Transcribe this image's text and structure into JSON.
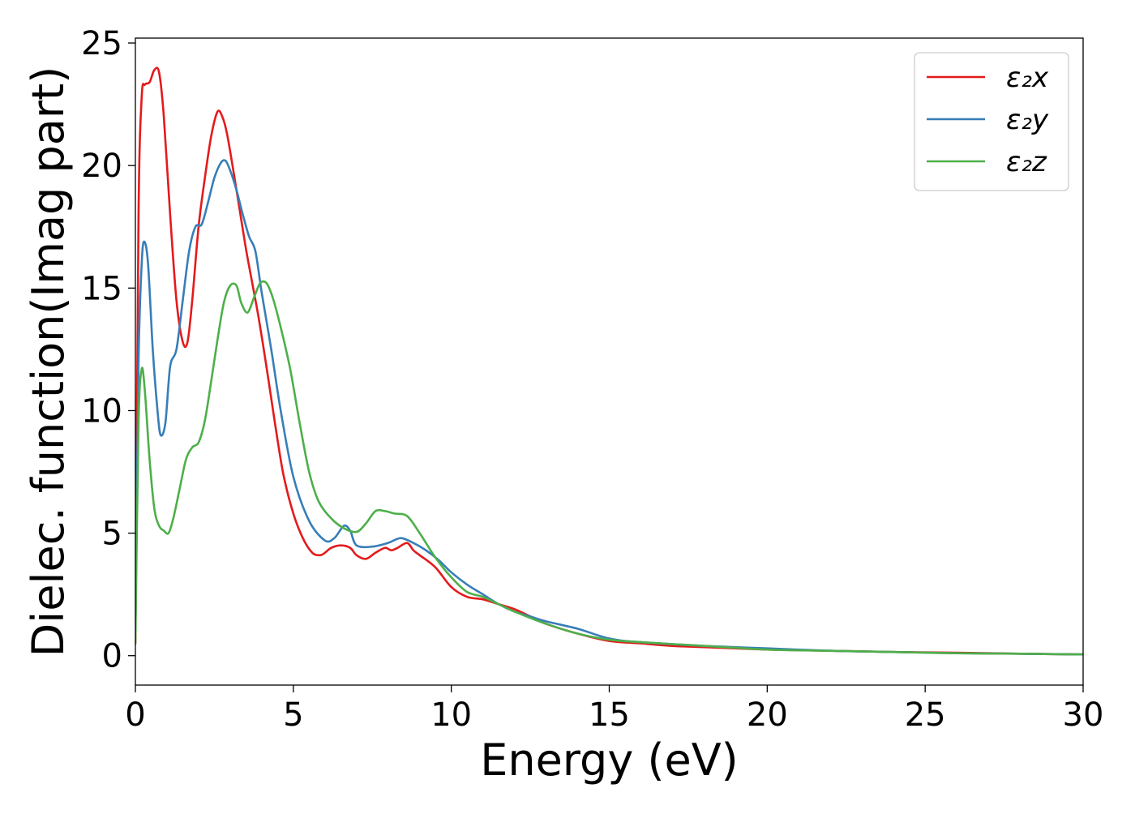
{
  "chart_data": {
    "type": "line",
    "xlabel": "Energy (eV)",
    "ylabel": "Dielec. function(Imag part)",
    "xlim": [
      0,
      30
    ],
    "ylim": [
      -1.2,
      25.2
    ],
    "xticks": [
      0,
      5,
      10,
      15,
      20,
      25,
      30
    ],
    "yticks": [
      0,
      5,
      10,
      15,
      20,
      25
    ],
    "grid": false,
    "legend_position": "top-right",
    "series": [
      {
        "name": "ε₂x",
        "color": "#e41a1c",
        "x": [
          0,
          0.1,
          0.2,
          0.3,
          0.45,
          0.6,
          0.75,
          0.9,
          1.1,
          1.3,
          1.5,
          1.65,
          1.8,
          2.0,
          2.2,
          2.4,
          2.6,
          2.75,
          2.9,
          3.1,
          3.3,
          3.5,
          3.7,
          3.9,
          4.1,
          4.3,
          4.5,
          4.7,
          5.0,
          5.3,
          5.6,
          5.85,
          6.0,
          6.2,
          6.5,
          6.8,
          7.0,
          7.3,
          7.6,
          7.9,
          8.1,
          8.3,
          8.6,
          8.8,
          9.0,
          9.5,
          10.0,
          10.5,
          11.0,
          11.5,
          12.0,
          12.5,
          13.0,
          14.0,
          15.0,
          16.0,
          17.0,
          18.0,
          20.0,
          22.0,
          24.0,
          26.0,
          28.0,
          30.0
        ],
        "values": [
          0.5,
          18.0,
          22.8,
          23.3,
          23.4,
          23.9,
          23.8,
          22.0,
          18.0,
          14.5,
          12.8,
          12.8,
          14.5,
          17.5,
          19.5,
          21.2,
          22.2,
          22.0,
          21.3,
          19.8,
          18.2,
          16.6,
          15.2,
          13.8,
          12.2,
          10.5,
          8.8,
          7.3,
          5.8,
          4.8,
          4.2,
          4.1,
          4.2,
          4.4,
          4.5,
          4.4,
          4.1,
          3.95,
          4.2,
          4.4,
          4.3,
          4.4,
          4.6,
          4.3,
          4.1,
          3.6,
          2.8,
          2.4,
          2.3,
          2.1,
          1.9,
          1.6,
          1.3,
          0.9,
          0.6,
          0.5,
          0.4,
          0.35,
          0.25,
          0.2,
          0.15,
          0.12,
          0.08,
          0.05
        ]
      },
      {
        "name": "ε₂y",
        "color": "#377eb8",
        "x": [
          0,
          0.1,
          0.2,
          0.28,
          0.4,
          0.55,
          0.7,
          0.8,
          0.95,
          1.1,
          1.3,
          1.5,
          1.7,
          1.9,
          2.1,
          2.3,
          2.5,
          2.7,
          2.85,
          3.0,
          3.2,
          3.4,
          3.6,
          3.8,
          4.0,
          4.3,
          4.6,
          5.0,
          5.5,
          6.0,
          6.3,
          6.6,
          6.8,
          7.0,
          7.5,
          8.0,
          8.4,
          8.8,
          9.2,
          9.6,
          10.0,
          10.5,
          11.0,
          11.5,
          12.0,
          12.5,
          13.0,
          14.0,
          15.0,
          16.0,
          18.0,
          20.0,
          22.0,
          24.0,
          26.0,
          28.0,
          30.0
        ],
        "values": [
          1.0,
          12.0,
          16.0,
          16.9,
          16.0,
          12.5,
          10.0,
          9.0,
          9.5,
          11.8,
          12.5,
          14.5,
          16.5,
          17.5,
          17.6,
          18.5,
          19.5,
          20.1,
          20.2,
          19.8,
          19.0,
          18.0,
          17.1,
          16.5,
          14.8,
          12.5,
          10.0,
          7.3,
          5.5,
          4.7,
          4.8,
          5.3,
          5.1,
          4.5,
          4.45,
          4.6,
          4.8,
          4.6,
          4.3,
          3.9,
          3.4,
          2.9,
          2.5,
          2.1,
          1.8,
          1.6,
          1.4,
          1.1,
          0.7,
          0.55,
          0.4,
          0.3,
          0.2,
          0.15,
          0.1,
          0.08,
          0.05
        ]
      },
      {
        "name": "ε₂z",
        "color": "#4daf4a",
        "x": [
          0,
          0.1,
          0.2,
          0.3,
          0.45,
          0.6,
          0.75,
          0.9,
          1.05,
          1.2,
          1.4,
          1.6,
          1.8,
          2.0,
          2.2,
          2.4,
          2.6,
          2.8,
          3.0,
          3.2,
          3.35,
          3.55,
          3.75,
          3.95,
          4.15,
          4.35,
          4.6,
          4.9,
          5.2,
          5.5,
          5.8,
          6.2,
          6.6,
          7.0,
          7.3,
          7.6,
          7.9,
          8.2,
          8.6,
          9.0,
          9.5,
          10.0,
          10.5,
          11.0,
          11.5,
          12.0,
          13.0,
          14.0,
          15.0,
          16.0,
          18.0,
          20.0,
          22.0,
          24.0,
          26.0,
          28.0,
          30.0
        ],
        "values": [
          0.5,
          9.5,
          11.7,
          10.8,
          8.0,
          6.0,
          5.3,
          5.1,
          5.0,
          5.6,
          6.8,
          8.0,
          8.5,
          8.7,
          9.6,
          11.2,
          12.9,
          14.4,
          15.1,
          15.1,
          14.4,
          14.0,
          14.6,
          15.2,
          15.2,
          14.6,
          13.4,
          11.7,
          9.5,
          7.5,
          6.3,
          5.6,
          5.2,
          5.05,
          5.4,
          5.9,
          5.9,
          5.8,
          5.7,
          5.0,
          4.0,
          3.2,
          2.6,
          2.4,
          2.1,
          1.8,
          1.3,
          0.9,
          0.65,
          0.55,
          0.4,
          0.25,
          0.2,
          0.15,
          0.1,
          0.08,
          0.05
        ]
      }
    ]
  }
}
